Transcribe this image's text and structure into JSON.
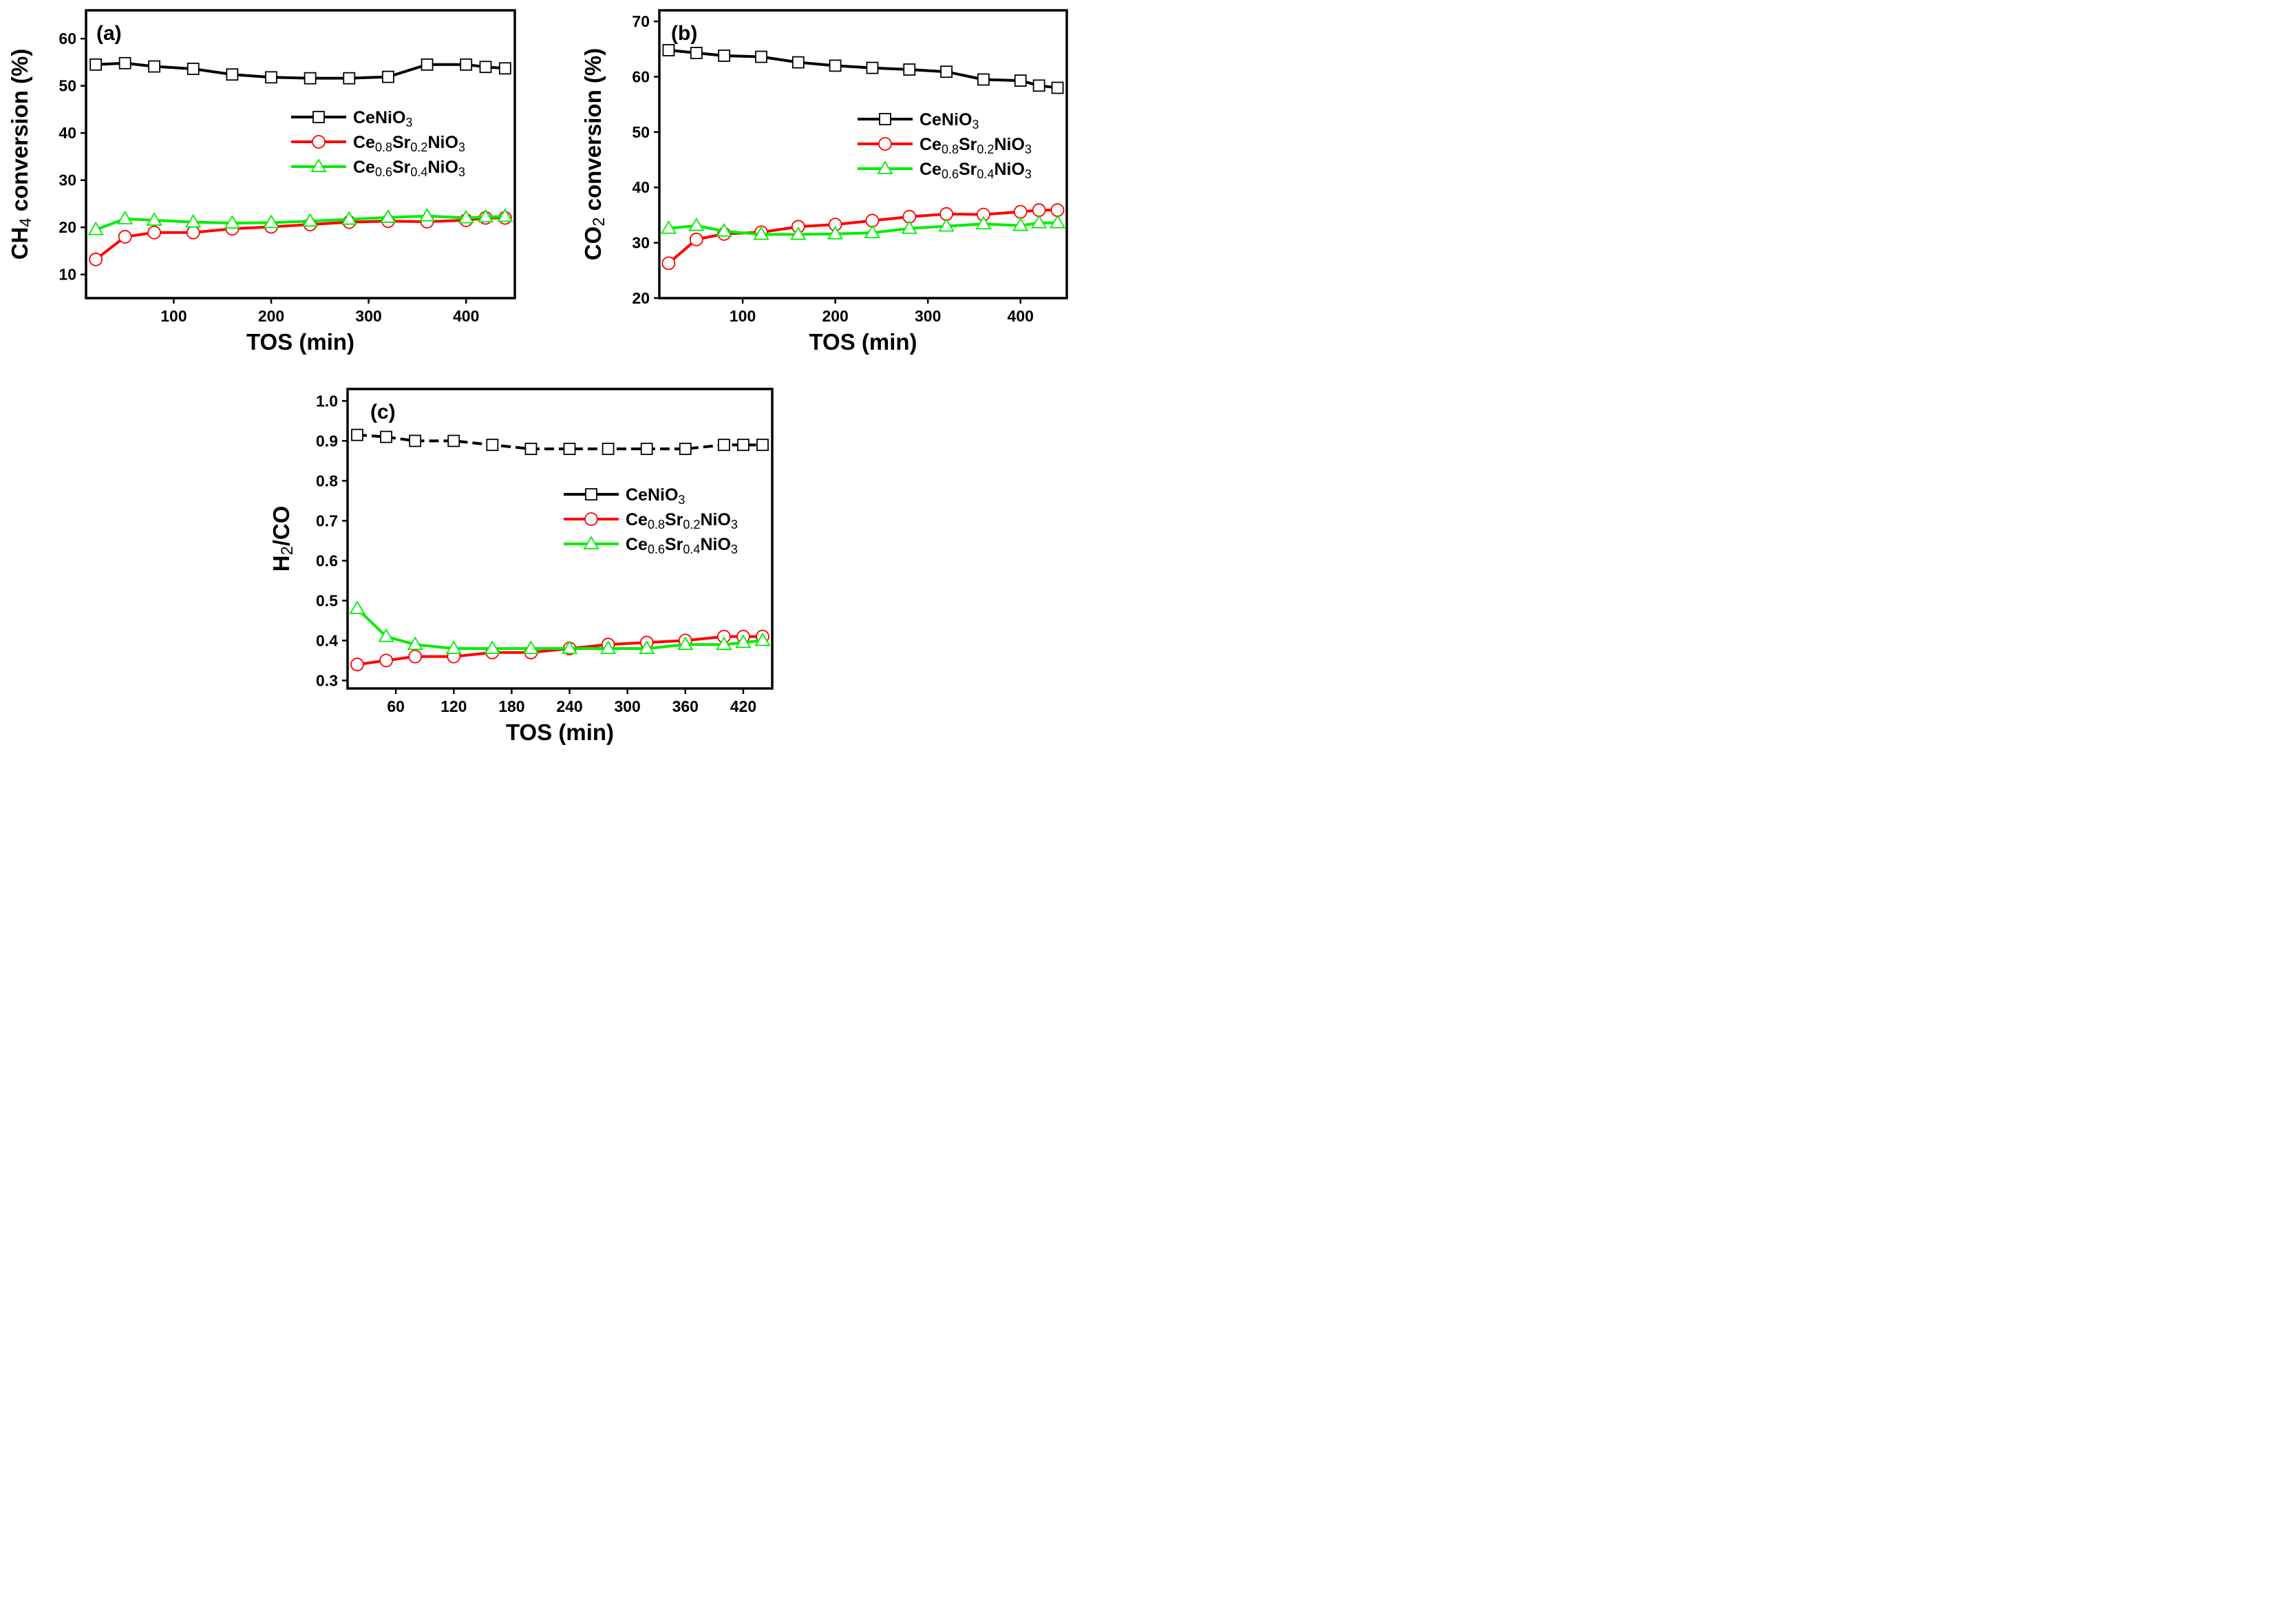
{
  "chart_data": [
    {
      "type": "line",
      "panel_label": "(a)",
      "xlabel": "TOS (min)",
      "ylabel": "CH4 conversion (%)",
      "ylabel_parts": [
        "CH",
        "4",
        " conversion (%)"
      ],
      "xlim": [
        10,
        450
      ],
      "ylim": [
        5,
        66
      ],
      "xticks": [
        100,
        200,
        300,
        400
      ],
      "xtick_labels": [
        "100",
        "200",
        "300",
        "400"
      ],
      "yticks": [
        10,
        20,
        30,
        40,
        50,
        60
      ],
      "ytick_labels": [
        "10",
        "20",
        "30",
        "40",
        "50",
        "60"
      ],
      "legend_position": "right",
      "series": [
        {
          "name": "CeNiO3",
          "label_parts": [
            "CeNiO",
            "3"
          ],
          "color": "#000000",
          "marker": "square",
          "points": [
            [
              20,
              54.5
            ],
            [
              50,
              54.8
            ],
            [
              80,
              54.1
            ],
            [
              120,
              53.6
            ],
            [
              160,
              52.4
            ],
            [
              200,
              51.8
            ],
            [
              240,
              51.6
            ],
            [
              280,
              51.6
            ],
            [
              320,
              51.9
            ],
            [
              360,
              54.5
            ],
            [
              400,
              54.5
            ],
            [
              420,
              54.0
            ],
            [
              440,
              53.7
            ]
          ]
        },
        {
          "name": "Ce0.8Sr0.2NiO3",
          "label_parts": [
            "Ce",
            "0.8",
            "Sr",
            "0.2",
            "NiO",
            "3"
          ],
          "color": "#ff0000",
          "marker": "circle",
          "points": [
            [
              20,
              13.2
            ],
            [
              50,
              18.0
            ],
            [
              80,
              18.9
            ],
            [
              120,
              18.9
            ],
            [
              160,
              19.7
            ],
            [
              200,
              20.1
            ],
            [
              240,
              20.6
            ],
            [
              280,
              21.1
            ],
            [
              320,
              21.3
            ],
            [
              360,
              21.2
            ],
            [
              400,
              21.5
            ],
            [
              420,
              22.0
            ],
            [
              440,
              22.0
            ]
          ]
        },
        {
          "name": "Ce0.6Sr0.4NiO3",
          "label_parts": [
            "Ce",
            "0.6",
            "Sr",
            "0.4",
            "NiO",
            "3"
          ],
          "color": "#00ee00",
          "marker": "triangle",
          "points": [
            [
              20,
              19.5
            ],
            [
              50,
              21.8
            ],
            [
              80,
              21.5
            ],
            [
              120,
              21.1
            ],
            [
              160,
              20.9
            ],
            [
              200,
              21.0
            ],
            [
              240,
              21.3
            ],
            [
              280,
              21.7
            ],
            [
              320,
              22.1
            ],
            [
              360,
              22.4
            ],
            [
              400,
              22.0
            ],
            [
              420,
              22.2
            ],
            [
              440,
              22.3
            ]
          ]
        }
      ]
    },
    {
      "type": "line",
      "panel_label": "(b)",
      "xlabel": "TOS (min)",
      "ylabel": "CO2 conversion (%)",
      "ylabel_parts": [
        "CO",
        "2",
        " conversion (%)"
      ],
      "xlim": [
        10,
        450
      ],
      "ylim": [
        20,
        72
      ],
      "xticks": [
        100,
        200,
        300,
        400
      ],
      "xtick_labels": [
        "100",
        "200",
        "300",
        "400"
      ],
      "yticks": [
        20,
        30,
        40,
        50,
        60,
        70
      ],
      "ytick_labels": [
        "20",
        "30",
        "40",
        "50",
        "60",
        "70"
      ],
      "legend_position": "right",
      "series": [
        {
          "name": "CeNiO3",
          "label_parts": [
            "CeNiO",
            "3"
          ],
          "color": "#000000",
          "marker": "square",
          "points": [
            [
              20,
              64.8
            ],
            [
              50,
              64.3
            ],
            [
              80,
              63.8
            ],
            [
              120,
              63.6
            ],
            [
              160,
              62.6
            ],
            [
              200,
              62.0
            ],
            [
              240,
              61.6
            ],
            [
              280,
              61.3
            ],
            [
              320,
              60.9
            ],
            [
              360,
              59.5
            ],
            [
              400,
              59.3
            ],
            [
              420,
              58.4
            ],
            [
              440,
              58.0
            ]
          ]
        },
        {
          "name": "Ce0.8Sr0.2NiO3",
          "label_parts": [
            "Ce",
            "0.8",
            "Sr",
            "0.2",
            "NiO",
            "3"
          ],
          "color": "#ff0000",
          "marker": "circle",
          "points": [
            [
              20,
              26.3
            ],
            [
              50,
              30.6
            ],
            [
              80,
              31.6
            ],
            [
              120,
              31.9
            ],
            [
              160,
              32.9
            ],
            [
              200,
              33.3
            ],
            [
              240,
              34.0
            ],
            [
              280,
              34.7
            ],
            [
              320,
              35.2
            ],
            [
              360,
              35.1
            ],
            [
              400,
              35.6
            ],
            [
              420,
              35.9
            ],
            [
              440,
              35.9
            ]
          ]
        },
        {
          "name": "Ce0.6Sr0.4NiO3",
          "label_parts": [
            "Ce",
            "0.6",
            "Sr",
            "0.4",
            "NiO",
            "3"
          ],
          "color": "#00ee00",
          "marker": "triangle",
          "points": [
            [
              20,
              32.6
            ],
            [
              50,
              33.1
            ],
            [
              80,
              32.1
            ],
            [
              120,
              31.5
            ],
            [
              160,
              31.5
            ],
            [
              200,
              31.6
            ],
            [
              240,
              31.8
            ],
            [
              280,
              32.6
            ],
            [
              320,
              33.0
            ],
            [
              360,
              33.4
            ],
            [
              400,
              33.1
            ],
            [
              420,
              33.6
            ],
            [
              440,
              33.6
            ]
          ]
        }
      ]
    },
    {
      "type": "line",
      "panel_label": "(c)",
      "xlabel": "TOS (min)",
      "ylabel": "H2/CO",
      "ylabel_parts": [
        "H",
        "2",
        "/CO"
      ],
      "xlim": [
        10,
        450
      ],
      "ylim": [
        0.28,
        1.03
      ],
      "xticks": [
        60,
        120,
        180,
        240,
        300,
        360,
        420
      ],
      "xtick_labels": [
        "60",
        "120",
        "180",
        "240",
        "300",
        "360",
        "420"
      ],
      "yticks": [
        0.3,
        0.4,
        0.5,
        0.6,
        0.7,
        0.8,
        0.9,
        1.0
      ],
      "ytick_labels": [
        "0.3",
        "0.4",
        "0.5",
        "0.6",
        "0.7",
        "0.8",
        "0.9",
        "1.0"
      ],
      "legend_position": "center-right",
      "series": [
        {
          "name": "CeNiO3",
          "label_parts": [
            "CeNiO",
            "3"
          ],
          "color": "#000000",
          "marker": "square",
          "line_style": "dashed",
          "points": [
            [
              20,
              0.915
            ],
            [
              50,
              0.91
            ],
            [
              80,
              0.9
            ],
            [
              120,
              0.9
            ],
            [
              160,
              0.89
            ],
            [
              200,
              0.88
            ],
            [
              240,
              0.88
            ],
            [
              280,
              0.88
            ],
            [
              320,
              0.88
            ],
            [
              360,
              0.88
            ],
            [
              400,
              0.89
            ],
            [
              420,
              0.89
            ],
            [
              440,
              0.89
            ]
          ]
        },
        {
          "name": "Ce0.8Sr0.2NiO3",
          "label_parts": [
            "Ce",
            "0.8",
            "Sr",
            "0.2",
            "NiO",
            "3"
          ],
          "color": "#ff0000",
          "marker": "circle",
          "points": [
            [
              20,
              0.34
            ],
            [
              50,
              0.35
            ],
            [
              80,
              0.36
            ],
            [
              120,
              0.36
            ],
            [
              160,
              0.37
            ],
            [
              200,
              0.37
            ],
            [
              240,
              0.38
            ],
            [
              280,
              0.39
            ],
            [
              320,
              0.395
            ],
            [
              360,
              0.4
            ],
            [
              400,
              0.41
            ],
            [
              420,
              0.41
            ],
            [
              440,
              0.41
            ]
          ]
        },
        {
          "name": "Ce0.6Sr0.4NiO3",
          "label_parts": [
            "Ce",
            "0.6",
            "Sr",
            "0.4",
            "NiO",
            "3"
          ],
          "color": "#00ee00",
          "marker": "triangle",
          "points": [
            [
              20,
              0.48
            ],
            [
              50,
              0.41
            ],
            [
              80,
              0.39
            ],
            [
              120,
              0.38
            ],
            [
              160,
              0.38
            ],
            [
              200,
              0.38
            ],
            [
              240,
              0.38
            ],
            [
              280,
              0.38
            ],
            [
              320,
              0.38
            ],
            [
              360,
              0.39
            ],
            [
              400,
              0.39
            ],
            [
              420,
              0.395
            ],
            [
              440,
              0.4
            ]
          ]
        }
      ]
    }
  ]
}
